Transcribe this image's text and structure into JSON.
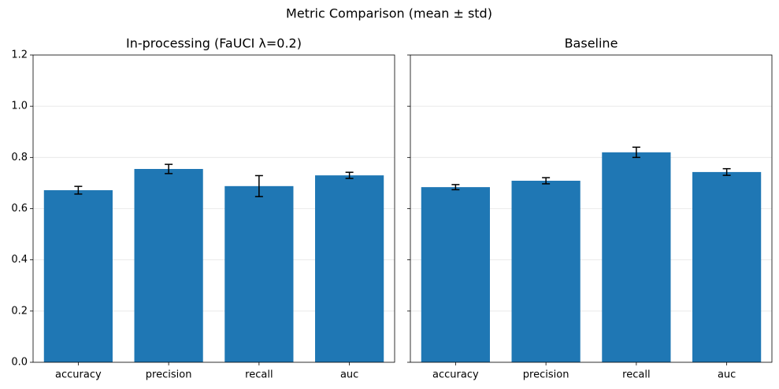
{
  "title": "Metric Comparison (mean ± std)",
  "chart_data": [
    {
      "type": "bar",
      "title": "In-processing (FaUCI λ=0.2)",
      "categories": [
        "accuracy",
        "precision",
        "recall",
        "auc"
      ],
      "values": [
        0.672,
        0.755,
        0.688,
        0.73
      ],
      "errors": [
        0.015,
        0.018,
        0.041,
        0.012
      ],
      "color": "#1f77b4",
      "ylim": [
        0,
        1.2
      ],
      "yticks": [
        {
          "value": 0,
          "label": "0.0"
        },
        0.2,
        0.4,
        0.6,
        0.8,
        {
          "value": 1,
          "label": "1.0"
        },
        1.2
      ],
      "grid": true,
      "show_ytick_labels": true
    },
    {
      "type": "bar",
      "title": "Baseline",
      "categories": [
        "accuracy",
        "precision",
        "recall",
        "auc"
      ],
      "values": [
        0.684,
        0.709,
        0.82,
        0.743
      ],
      "errors": [
        0.01,
        0.012,
        0.02,
        0.013
      ],
      "color": "#1f77b4",
      "ylim": [
        0,
        1.2
      ],
      "yticks": [
        {
          "value": 0,
          "label": "0.0"
        },
        0.2,
        0.4,
        0.6,
        0.8,
        {
          "value": 1,
          "label": "1.0"
        },
        1.2
      ],
      "grid": true,
      "show_ytick_labels": false
    }
  ]
}
